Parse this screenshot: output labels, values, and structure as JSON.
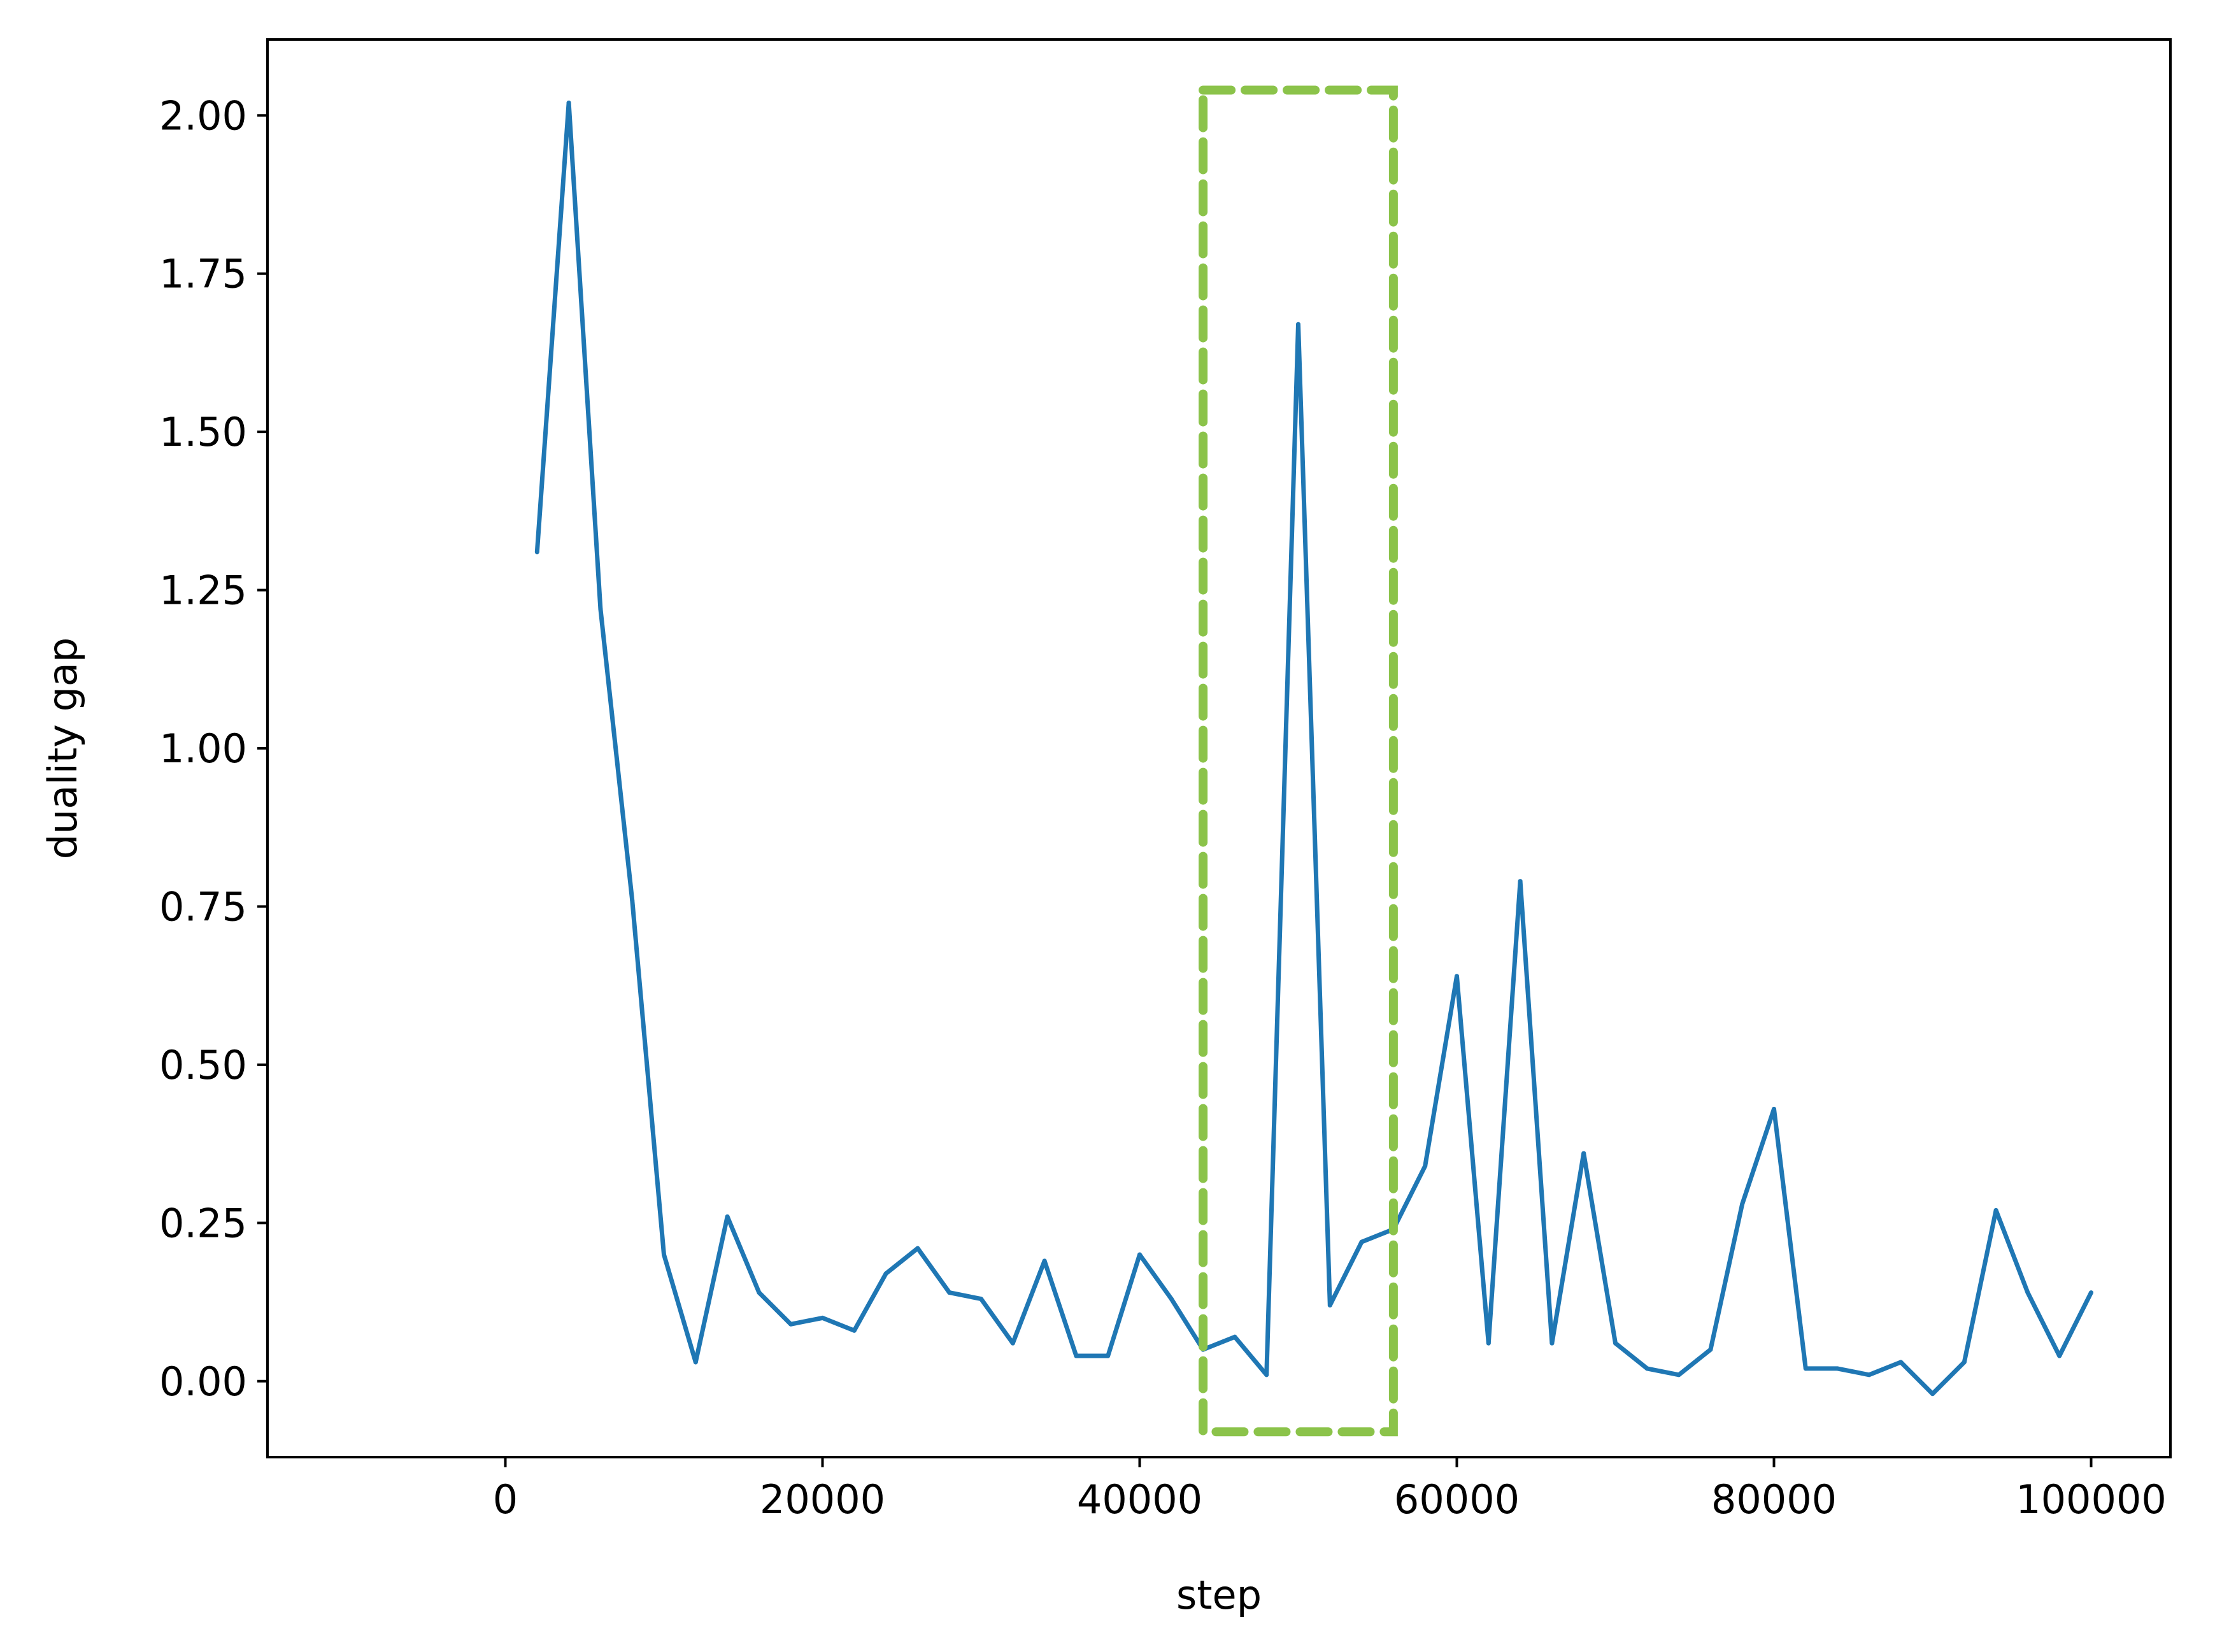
{
  "chart_data": {
    "type": "line",
    "xlabel": "step",
    "ylabel": "duality gap",
    "xlim": [
      -15000,
      105000
    ],
    "ylim": [
      -0.12,
      2.12
    ],
    "xticks": [
      0,
      20000,
      40000,
      60000,
      80000,
      100000
    ],
    "xtick_labels": [
      "0",
      "20000",
      "40000",
      "60000",
      "80000",
      "100000"
    ],
    "yticks": [
      0.0,
      0.25,
      0.5,
      0.75,
      1.0,
      1.25,
      1.5,
      1.75,
      2.0
    ],
    "ytick_labels": [
      "0.00",
      "0.25",
      "0.50",
      "0.75",
      "1.00",
      "1.25",
      "1.50",
      "1.75",
      "2.00"
    ],
    "grid": false,
    "series": [
      {
        "color": "#1f77b4",
        "x": [
          2000,
          4000,
          6000,
          8000,
          10000,
          12000,
          14000,
          16000,
          18000,
          20000,
          22000,
          24000,
          26000,
          28000,
          30000,
          32000,
          34000,
          36000,
          38000,
          40000,
          42000,
          44000,
          46000,
          48000,
          50000,
          52000,
          54000,
          56000,
          58000,
          60000,
          62000,
          64000,
          66000,
          68000,
          70000,
          72000,
          74000,
          76000,
          78000,
          80000,
          82000,
          84000,
          86000,
          88000,
          90000,
          92000,
          94000,
          96000,
          98000,
          100000
        ],
        "y": [
          1.31,
          2.02,
          1.22,
          0.76,
          0.2,
          0.03,
          0.26,
          0.14,
          0.09,
          0.1,
          0.08,
          0.17,
          0.21,
          0.14,
          0.13,
          0.06,
          0.19,
          0.04,
          0.04,
          0.2,
          0.13,
          0.05,
          0.07,
          0.01,
          1.67,
          0.12,
          0.22,
          0.24,
          0.34,
          0.64,
          0.06,
          0.79,
          0.06,
          0.36,
          0.06,
          0.02,
          0.01,
          0.05,
          0.28,
          0.43,
          0.02,
          0.02,
          0.01,
          0.03,
          -0.02,
          0.03,
          0.27,
          0.14,
          0.04,
          0.14
        ]
      }
    ],
    "annotations": [
      {
        "type": "dashed-rectangle",
        "color": "#8bc34a",
        "x_range": [
          44000,
          56000
        ],
        "y_range": [
          -0.08,
          2.04
        ]
      }
    ]
  }
}
